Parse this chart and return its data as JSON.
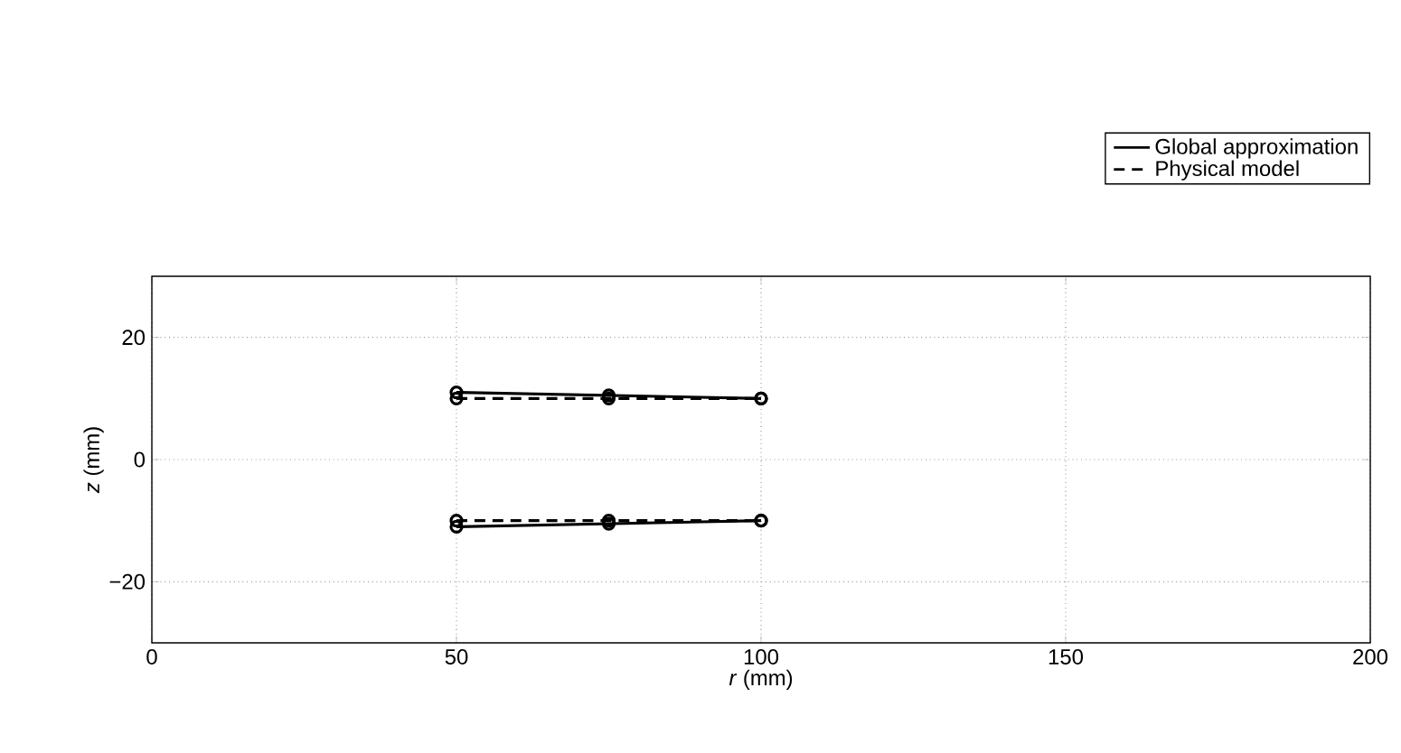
{
  "chart_data": {
    "type": "line",
    "xlabel": "*r* (mm)",
    "ylabel": "*z* (mm)",
    "xlim": [
      0,
      200
    ],
    "ylim": [
      -30,
      30
    ],
    "xticks": [
      0,
      50,
      100,
      150,
      200
    ],
    "yticks": [
      {
        "value": -20,
        "label": "−20"
      },
      0,
      20
    ],
    "grid": true,
    "legend": "top right",
    "marker": "circle",
    "series": [
      {
        "name": "Global approximation",
        "color": "#000000",
        "line_style": "solid",
        "x": [
          50,
          75,
          100
        ],
        "values": [
          11,
          10.5,
          10
        ]
      },
      {
        "name": "Physical model",
        "color": "#000000",
        "line_style": "dashed",
        "x": [
          50,
          75,
          100
        ],
        "values": [
          10,
          10,
          10
        ]
      },
      {
        "color": "#000000",
        "line_style": "solid",
        "x": [
          50,
          75,
          100
        ],
        "values": [
          -11,
          -10.5,
          -10
        ]
      },
      {
        "color": "#000000",
        "line_style": "dashed",
        "x": [
          50,
          75,
          100
        ],
        "values": [
          -10,
          -10,
          -10
        ]
      }
    ]
  }
}
